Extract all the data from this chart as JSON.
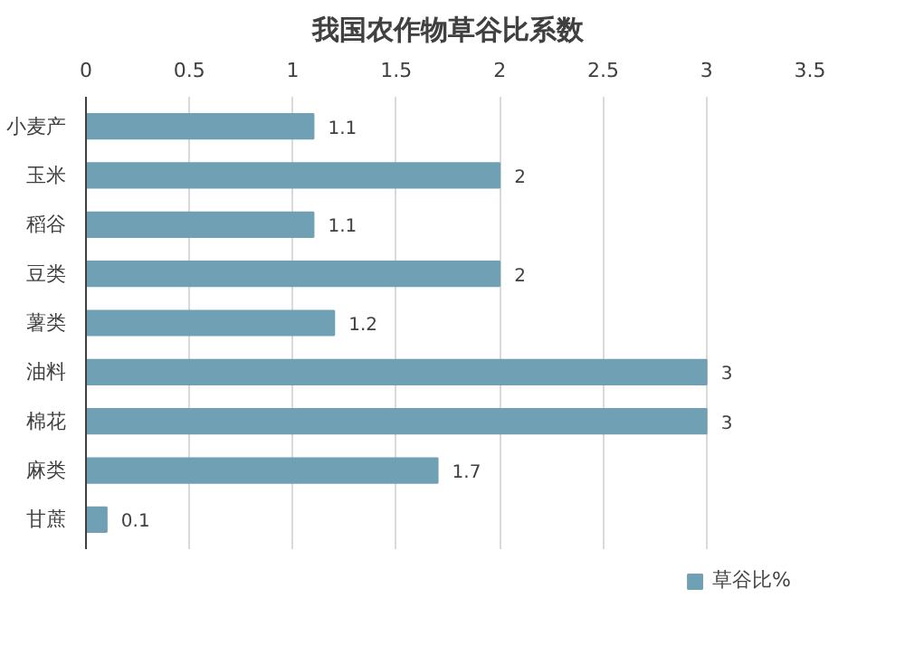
{
  "chart_data": {
    "type": "bar",
    "orientation": "horizontal",
    "title": "我国农作物草谷比系数",
    "categories": [
      "小麦产",
      "玉米",
      "稻谷",
      "豆类",
      "薯类",
      "油料",
      "棉花",
      "麻类",
      "甘蔗"
    ],
    "series": [
      {
        "name": "草谷比%",
        "color": "#6fa0b3",
        "values": [
          1.1,
          2,
          1.1,
          2,
          1.2,
          3,
          3,
          1.7,
          0.1
        ]
      }
    ],
    "xlim": [
      0,
      3.5
    ],
    "xticks": [
      0,
      0.5,
      1,
      1.5,
      2,
      2.5,
      3,
      3.5
    ],
    "grid": "x",
    "legend": "bottom",
    "data_labels": true
  }
}
